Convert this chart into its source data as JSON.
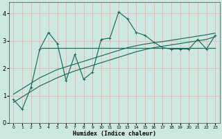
{
  "xlabel": "Humidex (Indice chaleur)",
  "xlim": [
    -0.5,
    23.5
  ],
  "ylim": [
    0,
    4.4
  ],
  "xticks": [
    0,
    1,
    2,
    3,
    4,
    5,
    6,
    7,
    8,
    9,
    10,
    11,
    12,
    13,
    14,
    15,
    16,
    17,
    18,
    19,
    20,
    21,
    22,
    23
  ],
  "yticks": [
    0,
    1,
    2,
    3,
    4
  ],
  "bg_color": "#cce8e0",
  "line_color": "#1a6b5a",
  "grid_color": "#f0b0b0",
  "jagged_x": [
    0,
    1,
    2,
    3,
    4,
    5,
    6,
    7,
    8,
    9,
    10,
    11,
    12,
    13,
    14,
    15,
    16,
    17,
    18,
    19,
    20,
    21,
    22,
    23
  ],
  "jagged_y": [
    0.85,
    0.5,
    1.3,
    2.7,
    3.3,
    2.9,
    1.55,
    2.5,
    1.6,
    1.85,
    3.05,
    3.1,
    4.05,
    3.8,
    3.3,
    3.2,
    2.95,
    2.75,
    2.7,
    2.7,
    2.7,
    3.05,
    2.7,
    3.2
  ],
  "trend_low_x": [
    0,
    1,
    2,
    3,
    4,
    5,
    6,
    7,
    8,
    9,
    10,
    11,
    12,
    13,
    14,
    15,
    16,
    17,
    18,
    19,
    20,
    21,
    22,
    23
  ],
  "trend_low_y": [
    0.75,
    0.95,
    1.15,
    1.35,
    1.5,
    1.65,
    1.78,
    1.9,
    2.0,
    2.1,
    2.2,
    2.3,
    2.4,
    2.5,
    2.6,
    2.68,
    2.75,
    2.8,
    2.85,
    2.9,
    2.95,
    3.0,
    3.05,
    3.15
  ],
  "trend_high_x": [
    0,
    1,
    2,
    3,
    4,
    5,
    6,
    7,
    8,
    9,
    10,
    11,
    12,
    13,
    14,
    15,
    16,
    17,
    18,
    19,
    20,
    21,
    22,
    23
  ],
  "trend_high_y": [
    1.05,
    1.25,
    1.45,
    1.65,
    1.8,
    1.95,
    2.05,
    2.15,
    2.25,
    2.35,
    2.45,
    2.55,
    2.65,
    2.75,
    2.82,
    2.88,
    2.93,
    2.97,
    3.02,
    3.07,
    3.12,
    3.17,
    3.22,
    3.28
  ],
  "flat_x": [
    3,
    4,
    5,
    6,
    7,
    8,
    9,
    10,
    11,
    12,
    13,
    14,
    15,
    16,
    17,
    18,
    19,
    20,
    21,
    22,
    23
  ],
  "flat_y": [
    2.75,
    2.75,
    2.75,
    2.75,
    2.75,
    2.75,
    2.75,
    2.75,
    2.75,
    2.75,
    2.75,
    2.75,
    2.75,
    2.75,
    2.75,
    2.75,
    2.75,
    2.75,
    2.75,
    2.75,
    2.75
  ]
}
